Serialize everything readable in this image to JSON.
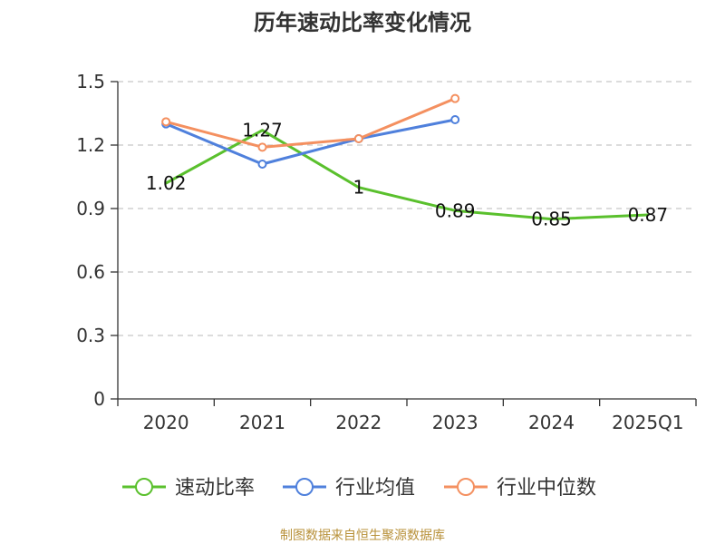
{
  "chart_data": {
    "type": "line",
    "title": "历年速动比率变化情况",
    "categories": [
      "2020",
      "2021",
      "2022",
      "2023",
      "2024",
      "2025Q1"
    ],
    "y_ticks": [
      "0",
      "0.3",
      "0.6",
      "0.9",
      "1.2",
      "1.5"
    ],
    "ylim": [
      0,
      1.5
    ],
    "grid": true,
    "legend_position": "bottom",
    "series": [
      {
        "name": "速动比率",
        "color": "#5ac02d",
        "values": [
          1.02,
          1.27,
          1.0,
          0.89,
          0.85,
          0.87
        ],
        "labels": [
          "1.02",
          "1.27",
          "1",
          "0.89",
          "0.85",
          "0.87"
        ],
        "show_markers": false
      },
      {
        "name": "行业均值",
        "color": "#4f80dc",
        "values": [
          1.3,
          1.11,
          1.23,
          1.32,
          null,
          null
        ],
        "show_markers": true
      },
      {
        "name": "行业中位数",
        "color": "#f49060",
        "values": [
          1.31,
          1.19,
          1.23,
          1.42,
          null,
          null
        ],
        "show_markers": true
      }
    ]
  },
  "footer": "制图数据来自恒生聚源数据库"
}
